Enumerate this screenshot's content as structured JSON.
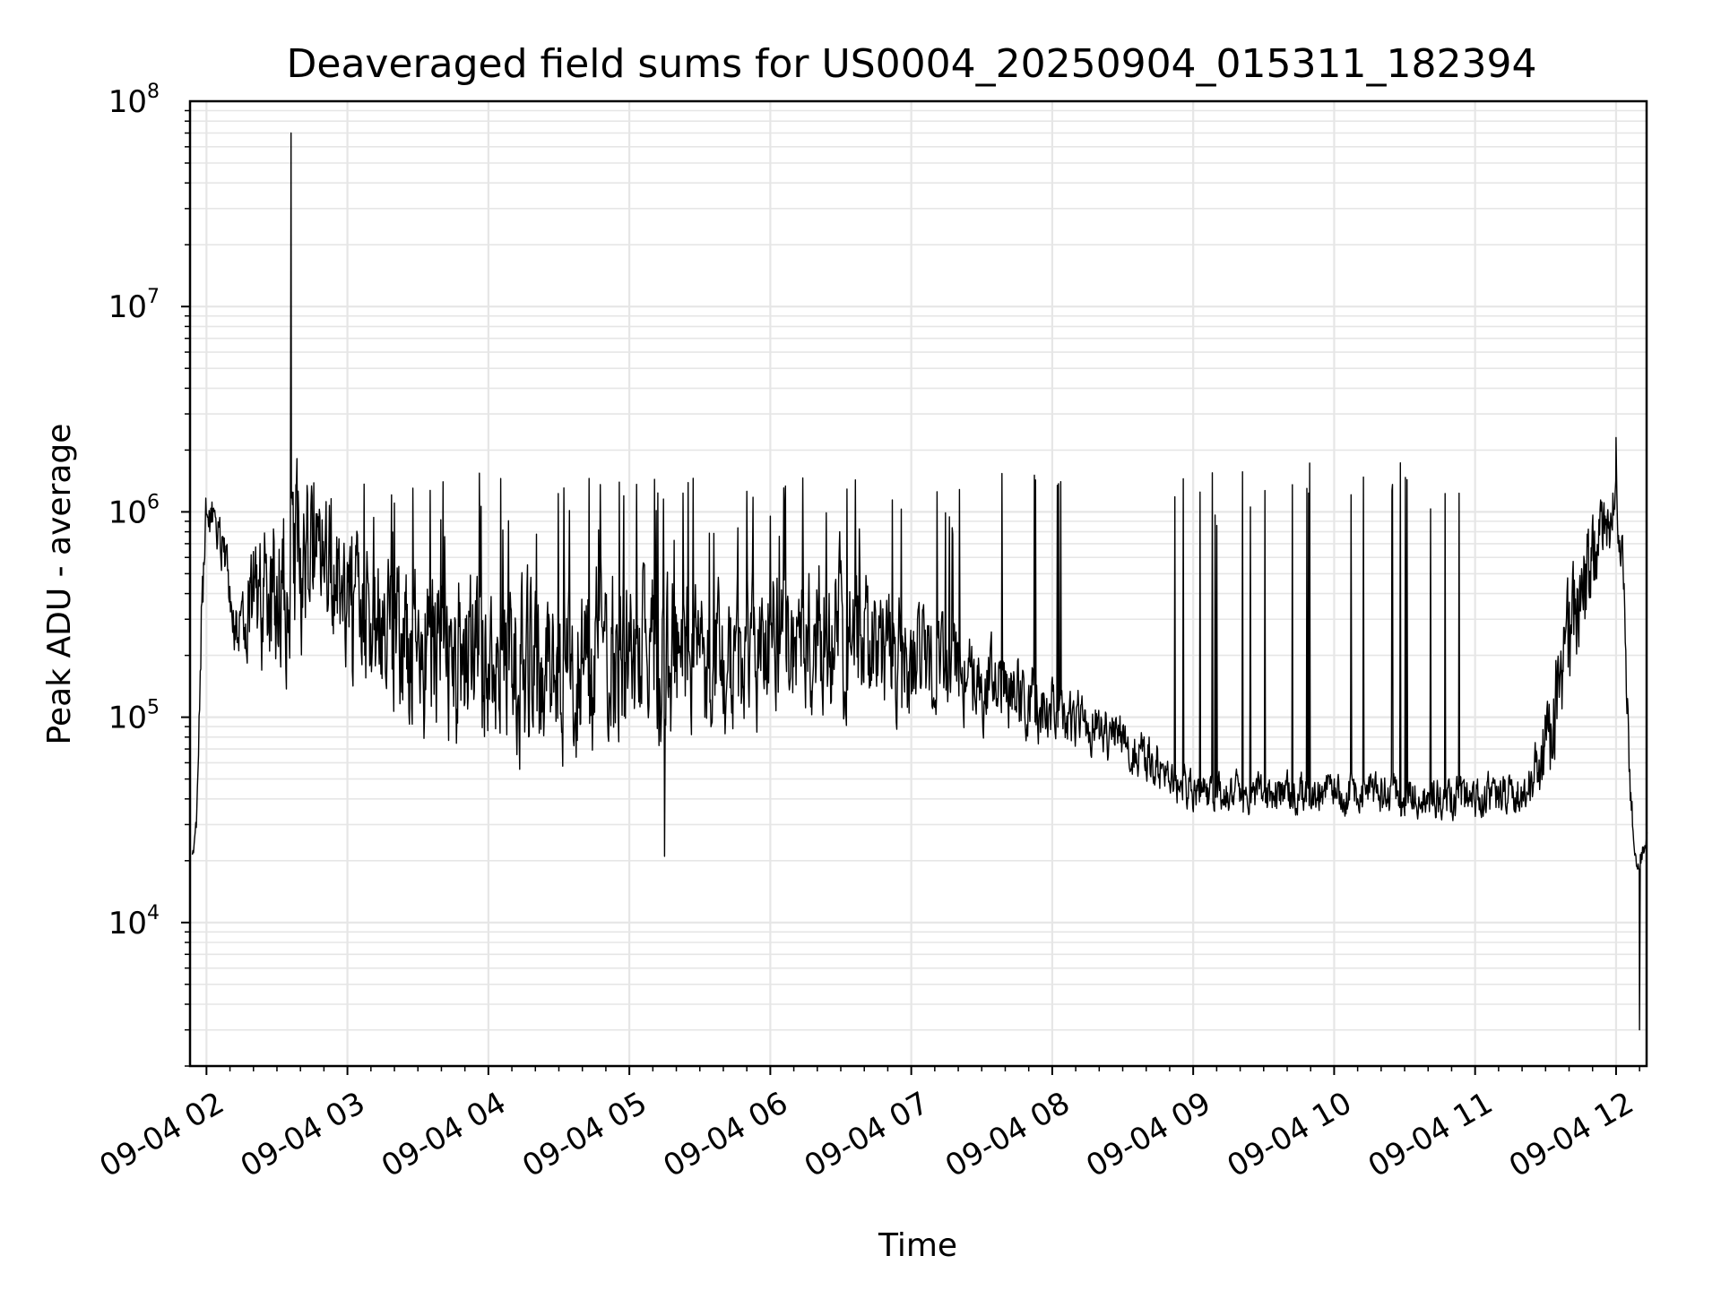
{
  "chart_data": {
    "type": "line",
    "title": "Deaveraged field sums for US0004_20250904_015311_182394",
    "xlabel": "Time",
    "ylabel": "Peak ADU - average",
    "yscale": "log",
    "ylim": [
      2000,
      100000000
    ],
    "xlim": [
      "09-04 01:53",
      "09-04 12:13"
    ],
    "grid": "on (major and minor)",
    "legend": "none",
    "line_color": "#000000",
    "grid_color": "#e6e6e6",
    "x_ticks": [
      "09-04 02",
      "09-04 03",
      "09-04 04",
      "09-04 05",
      "09-04 06",
      "09-04 07",
      "09-04 08",
      "09-04 09",
      "09-04 10",
      "09-04 11",
      "09-04 12"
    ],
    "y_ticks": [
      {
        "value": 10000,
        "base": "10",
        "exp": "4"
      },
      {
        "value": 100000,
        "base": "10",
        "exp": "5"
      },
      {
        "value": 1000000,
        "base": "10",
        "exp": "6"
      },
      {
        "value": 10000000,
        "base": "10",
        "exp": "7"
      }
    ],
    "y_top_tick": {
      "value": 100000000,
      "base": "10",
      "exp": "8"
    },
    "envelope": {
      "hours": [
        1.9,
        1.93,
        1.97,
        2.0,
        2.1,
        2.2,
        2.4,
        2.55,
        2.65,
        2.8,
        3.0,
        3.25,
        3.5,
        3.75,
        4.0,
        4.25,
        4.5,
        4.75,
        5.0,
        5.25,
        5.5,
        5.75,
        6.0,
        6.25,
        6.5,
        6.75,
        7.0,
        7.25,
        7.5,
        7.75,
        8.0,
        8.25,
        8.5,
        8.75,
        9.0,
        9.25,
        9.5,
        9.75,
        10.0,
        10.25,
        10.5,
        10.75,
        11.0,
        11.2,
        11.35,
        11.5,
        11.65,
        11.8,
        11.95,
        12.0,
        12.05,
        12.1,
        12.15,
        12.2,
        12.22
      ],
      "low": [
        15000,
        25000,
        200000,
        700000,
        500000,
        180000,
        120000,
        90000,
        90000,
        250000,
        120000,
        60000,
        50000,
        45000,
        40000,
        38000,
        40000,
        45000,
        45000,
        45000,
        50000,
        55000,
        65000,
        75000,
        70000,
        70000,
        70000,
        75000,
        70000,
        65000,
        65000,
        60000,
        50000,
        40000,
        30000,
        30000,
        30000,
        30000,
        29000,
        29000,
        29000,
        28000,
        28000,
        28000,
        28000,
        28000,
        60000,
        200000,
        500000,
        700000,
        300000,
        30000,
        15000,
        20000,
        25000
      ],
      "high": [
        30000,
        35000,
        900000,
        1500000,
        1200000,
        500000,
        1200000,
        1800000,
        2500000,
        1800000,
        1200000,
        900000,
        850000,
        800000,
        800000,
        800000,
        800000,
        850000,
        850000,
        800000,
        750000,
        750000,
        800000,
        900000,
        1000000,
        600000,
        500000,
        400000,
        300000,
        250000,
        200000,
        150000,
        120000,
        90000,
        60000,
        60000,
        60000,
        60000,
        60000,
        60000,
        60000,
        60000,
        60000,
        60000,
        60000,
        150000,
        600000,
        1200000,
        1600000,
        1800000,
        1200000,
        60000,
        20000,
        28000,
        30000
      ]
    },
    "spike_bands": [
      {
        "start_hour": 2.35,
        "end_hour": 8.1,
        "peak": 1200000
      },
      {
        "start_hour": 8.75,
        "end_hour": 11.0,
        "peak": 1400000
      }
    ],
    "notable_points": [
      {
        "time": "09-04 02:36",
        "value": 70000000
      },
      {
        "time": "09-04 05:15",
        "value": 21000
      },
      {
        "time": "09-04 12:10",
        "value": 3000
      },
      {
        "time": "09-04 12:00",
        "value": 2300000
      }
    ]
  }
}
